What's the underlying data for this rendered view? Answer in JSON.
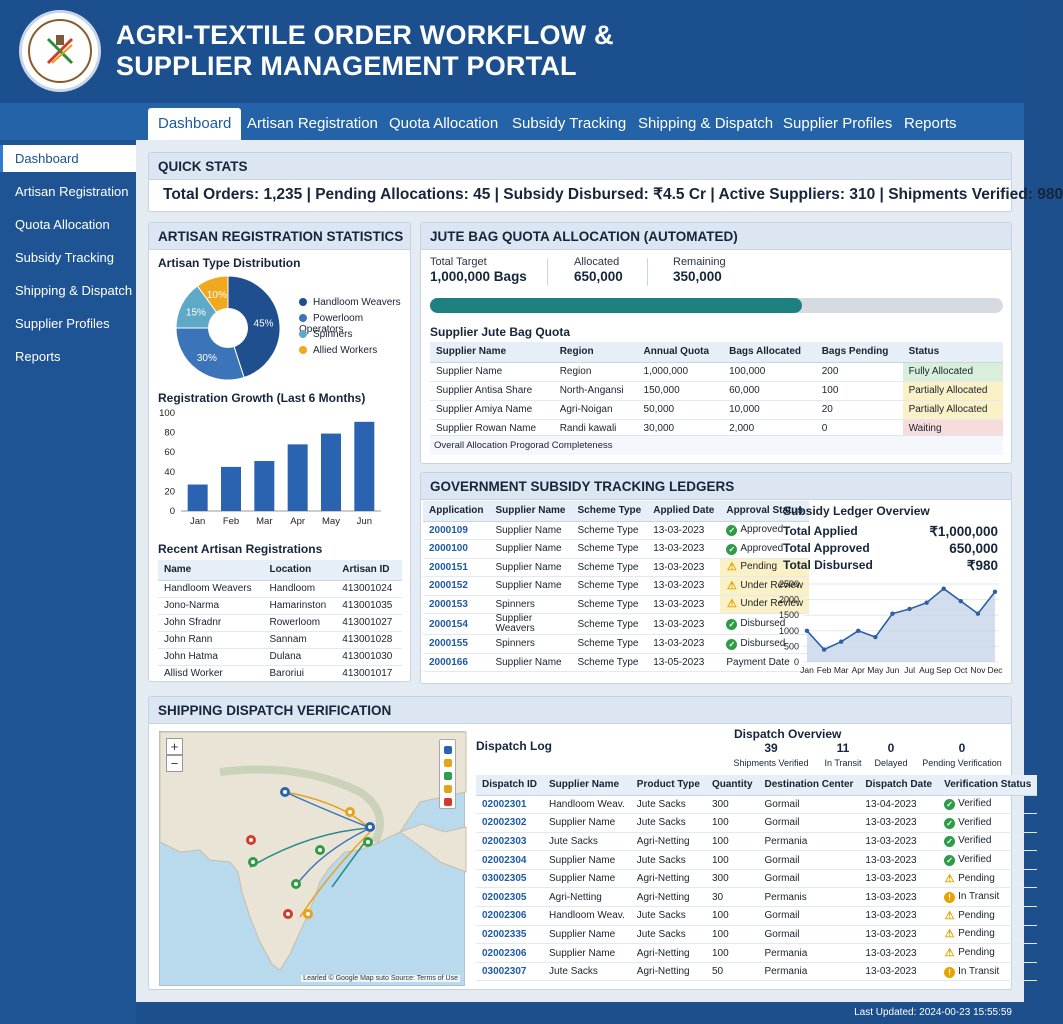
{
  "header": {
    "title_line1": "AGRI-TEXTILE ORDER WORKFLOW &",
    "title_line2": "SUPPLIER MANAGEMENT PORTAL"
  },
  "nav": {
    "tabs": [
      "Dashboard",
      "Artisan Registration",
      "Quota Allocation",
      "Subsidy Tracking",
      "Shipping & Dispatch",
      "Supplier Profiles",
      "Reports"
    ],
    "active": "Dashboard"
  },
  "sidebar": {
    "items": [
      "Dashboard",
      "Artisan Registration",
      "Quota Allocation",
      "Subsidy Tracking",
      "Shipping & Dispatch",
      "Supplier Profiles",
      "Reports"
    ]
  },
  "quick_stats": {
    "title": "QUICK STATS",
    "line": "Total Orders: 1,235   |   Pending Allocations: 45   |   Subsidy Disbursed: ₹4.5 Cr   |   Active Suppliers: 310   |   Shipments Verified: 980"
  },
  "artisan": {
    "title": "ARTISAN REGISTRATION STATISTICS",
    "pie_title": "Artisan Type Distribution",
    "pie_legend": [
      "Handloom Weavers",
      "Powerloom Operators",
      "Spinners",
      "Allied Workers"
    ],
    "bar_title": "Registration Growth (Last 6 Months)",
    "recent_title": "Recent Artisan Registrations",
    "recent_headers": [
      "Name",
      "Location",
      "Artisan ID"
    ],
    "recent_rows": [
      [
        "Handloom Weavers",
        "Handloom",
        "413001024"
      ],
      [
        "Jono-Narma",
        "Hamarinston",
        "413001035"
      ],
      [
        "John Sfradnr",
        "Rowerloom",
        "413001027"
      ],
      [
        "John Rann",
        "Sannam",
        "413001028"
      ],
      [
        "John Hatma",
        "Dulana",
        "413001030"
      ],
      [
        "Allisd Worker",
        "Baroriui",
        "413001017"
      ]
    ]
  },
  "quota": {
    "title": "JUTE BAG QUOTA ALLOCATION (AUTOMATED)",
    "target_label": "Total Target",
    "target_value": "1,000,000 Bags",
    "allocated_label": "Allocated",
    "allocated_value": "650,000",
    "remaining_label": "Remaining",
    "remaining_value": "350,000",
    "progress_fraction": 0.65,
    "table_title": "Supplier Jute Bag Quota",
    "headers": [
      "Supplier Name",
      "Region",
      "Annual Quota",
      "Bags Allocated",
      "Bags Pending",
      "Status"
    ],
    "rows": [
      [
        "Supplier Name",
        "Region",
        "1,000,000",
        "100,000",
        "200",
        "Fully Allocated"
      ],
      [
        "Supplier Antisa Share",
        "North-Angansi",
        "150,000",
        "60,000",
        "100",
        "Partially Allocated"
      ],
      [
        "Supplier Amiya Name",
        "Agri-Noigan",
        "50,000",
        "10,000",
        "20",
        "Partially Allocated"
      ],
      [
        "Supplier Rowan Name",
        "Randi kawali",
        "30,000",
        "2,000",
        "0",
        "Waiting"
      ]
    ],
    "footer": "Overall Allocation Progorad Completeness",
    "status_colors": {
      "Fully Allocated": "#d9efd9",
      "Partially Allocated": "#fbf1c6",
      "Waiting": "#f7dcdc"
    }
  },
  "subsidy": {
    "title": "GOVERNMENT SUBSIDY TRACKING LEDGERS",
    "headers": [
      "Application",
      "Supplier Name",
      "Scheme Type",
      "Applied Date",
      "Approval Status"
    ],
    "rows": [
      [
        "2000109",
        "Supplier Name",
        "Scheme Type",
        "13-03-2023",
        "Approved",
        "ok"
      ],
      [
        "2000100",
        "Supplier Name",
        "Scheme Type",
        "13-03-2023",
        "Approved",
        "ok"
      ],
      [
        "2000151",
        "Supplier Name",
        "Scheme Type",
        "13-03-2023",
        "Pending",
        "warn"
      ],
      [
        "2000152",
        "Supplier Name",
        "Scheme Type",
        "13-03-2023",
        "Under Review",
        "warn"
      ],
      [
        "2000153",
        "Spinners",
        "Scheme Type",
        "13-03-2023",
        "Under Review",
        "warn"
      ],
      [
        "2000154",
        "Supplier Weavers",
        "Scheme Type",
        "13-03-2023",
        "Disbursed",
        "ok"
      ],
      [
        "2000155",
        "Spinners",
        "Scheme Type",
        "13-03-2023",
        "Disbursed",
        "ok"
      ],
      [
        "2000166",
        "Supplier Name",
        "Scheme Type",
        "13-05-2023",
        "Payment Date",
        "none"
      ]
    ],
    "overview_title": "Subsidy Ledger Overview",
    "applied_label": "Total Applied",
    "applied_value": "₹1,000,000",
    "approved_label": "Total Approved",
    "approved_value": "650,000",
    "disbursed_label": "Total Disbursed",
    "disbursed_value": "₹980"
  },
  "shipping": {
    "title": "SHIPPING DISPATCH VERIFICATION",
    "map_credit": "Learled © Google Map suto Source: Terms of Use",
    "zoom_in": "+",
    "zoom_out": "−",
    "log_title": "Dispatch Log",
    "overview_title": "Dispatch Overview",
    "overview": [
      {
        "num": "39",
        "label": "Shipments Verified"
      },
      {
        "num": "11",
        "label": "In Transit"
      },
      {
        "num": "0",
        "label": "Delayed"
      },
      {
        "num": "0",
        "label": "Pending Verification"
      }
    ],
    "headers": [
      "Dispatch ID",
      "Supplier Name",
      "Product Type",
      "Quantity",
      "Destination Center",
      "Dispatch Date",
      "Verification Status"
    ],
    "rows": [
      [
        "02002301",
        "Handloom Weav.",
        "Jute Sacks",
        "300",
        "Gormail",
        "13-04-2023",
        "Verified",
        "ok"
      ],
      [
        "02002302",
        "Supplier Name",
        "Jute Sacks",
        "100",
        "Gormail",
        "13-03-2023",
        "Verified",
        "ok"
      ],
      [
        "02002303",
        "Jute Sacks",
        "Agri-Netting",
        "100",
        "Permania",
        "13-03-2023",
        "Verified",
        "ok"
      ],
      [
        "02002304",
        "Supplier Name",
        "Jute Sacks",
        "100",
        "Gormail",
        "13-03-2023",
        "Verified",
        "ok"
      ],
      [
        "03002305",
        "Supplier Name",
        "Agri-Netting",
        "300",
        "Gormail",
        "13-03-2023",
        "Pending",
        "warn"
      ],
      [
        "02002305",
        "Agri-Netting",
        "Agri-Netting",
        "30",
        "Permanis",
        "13-03-2023",
        "In Transit",
        "transit"
      ],
      [
        "02002306",
        "Handloom Weav.",
        "Jute Sacks",
        "100",
        "Gormail",
        "13-03-2023",
        "Pending",
        "warn"
      ],
      [
        "02002335",
        "Supplier Name",
        "Jute Sacks",
        "100",
        "Gormail",
        "13-03-2023",
        "Pending",
        "warn"
      ],
      [
        "02002306",
        "Supplier Name",
        "Agri-Netting",
        "100",
        "Permania",
        "13-03-2023",
        "Pending",
        "warn"
      ],
      [
        "03002307",
        "Jute Sacks",
        "Agri-Netting",
        "50",
        "Permania",
        "13-03-2023",
        "In Transit",
        "transit"
      ]
    ]
  },
  "footer": {
    "text": "Last Updated: 2024-00-23 15:55:59"
  },
  "chart_data": [
    {
      "type": "pie",
      "title": "Artisan Type Distribution",
      "categories": [
        "Handloom Weavers",
        "Powerloom Operators",
        "Spinners",
        "Allied Workers"
      ],
      "values": [
        45,
        30,
        15,
        10
      ],
      "labels": [
        "45%",
        "30%",
        "15%",
        "10%"
      ],
      "colors": [
        "#1f4f8f",
        "#3b74b8",
        "#5ea8c8",
        "#f0a81c"
      ]
    },
    {
      "type": "bar",
      "title": "Registration Growth (Last 6 Months)",
      "categories": [
        "Jan",
        "Feb",
        "Mar",
        "Apr",
        "May",
        "Jun"
      ],
      "values": [
        27,
        45,
        51,
        68,
        79,
        91
      ],
      "ylim": [
        0,
        100
      ],
      "yticks": [
        0,
        20,
        40,
        60,
        80,
        100
      ],
      "color": "#2a63b0"
    },
    {
      "type": "area",
      "title": "Subsidy Ledger Overview",
      "categories": [
        "Jan",
        "Feb",
        "Mar",
        "Apr",
        "May",
        "Jun",
        "Jul",
        "Aug",
        "Sep",
        "Oct",
        "Nov",
        "Dec"
      ],
      "values": [
        1000,
        400,
        650,
        1000,
        800,
        1550,
        1700,
        1900,
        2350,
        1950,
        1550,
        2250
      ],
      "ylim": [
        0,
        2500
      ],
      "yticks": [
        0,
        500,
        1000,
        1500,
        2000,
        2500
      ],
      "color": "#2b5fa6"
    }
  ]
}
